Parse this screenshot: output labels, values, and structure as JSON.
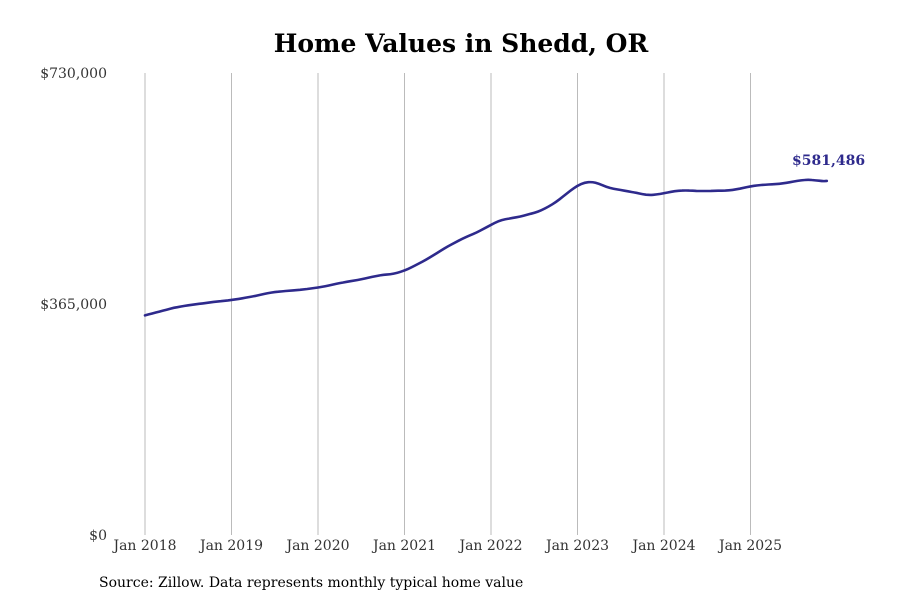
{
  "chart_data": {
    "type": "line",
    "title": "Home Values in Shedd, OR",
    "xlabel": "",
    "ylabel": "",
    "ylim": [
      0,
      730000
    ],
    "y_ticks": [
      0,
      365000,
      730000
    ],
    "y_tick_labels": [
      "$0",
      "$365,000",
      "$730,000"
    ],
    "x_ticks": [
      "Jan 2018",
      "Jan 2019",
      "Jan 2020",
      "Jan 2021",
      "Jan 2022",
      "Jan 2023",
      "Jan 2024",
      "Jan 2025"
    ],
    "grid": "vertical",
    "series": [
      {
        "values": [
          347000,
          350000,
          353000,
          356000,
          359000,
          361000,
          363000,
          364500,
          366000,
          367500,
          369000,
          370000,
          371500,
          373000,
          375000,
          377000,
          379500,
          382000,
          384000,
          385000,
          386000,
          387000,
          388000,
          389500,
          391000,
          393000,
          395500,
          398000,
          400000,
          402000,
          404000,
          406500,
          409000,
          411000,
          412000,
          414000,
          418000,
          423000,
          429000,
          435000,
          442000,
          449000,
          456000,
          462000,
          468000,
          473000,
          478000,
          484000,
          490000,
          496000,
          499000,
          501000,
          503000,
          506000,
          509000,
          513000,
          519000,
          526000,
          535000,
          544000,
          552000,
          557000,
          558000,
          555000,
          550000,
          547000,
          545000,
          543000,
          541000,
          538500,
          537000,
          538000,
          540000,
          542500,
          544000,
          544500,
          544000,
          543500,
          543500,
          544000,
          544000,
          544500,
          546000,
          548500,
          551000,
          552500,
          553500,
          554000,
          555000,
          556500,
          558500,
          560500,
          561500,
          560500,
          559000,
          581486
        ]
      }
    ],
    "end_label": "$581,486",
    "line_color": "#2e2a8c",
    "grid_color": "#bbbbbb"
  },
  "source": "Source: Zillow. Data represents monthly typical home value"
}
